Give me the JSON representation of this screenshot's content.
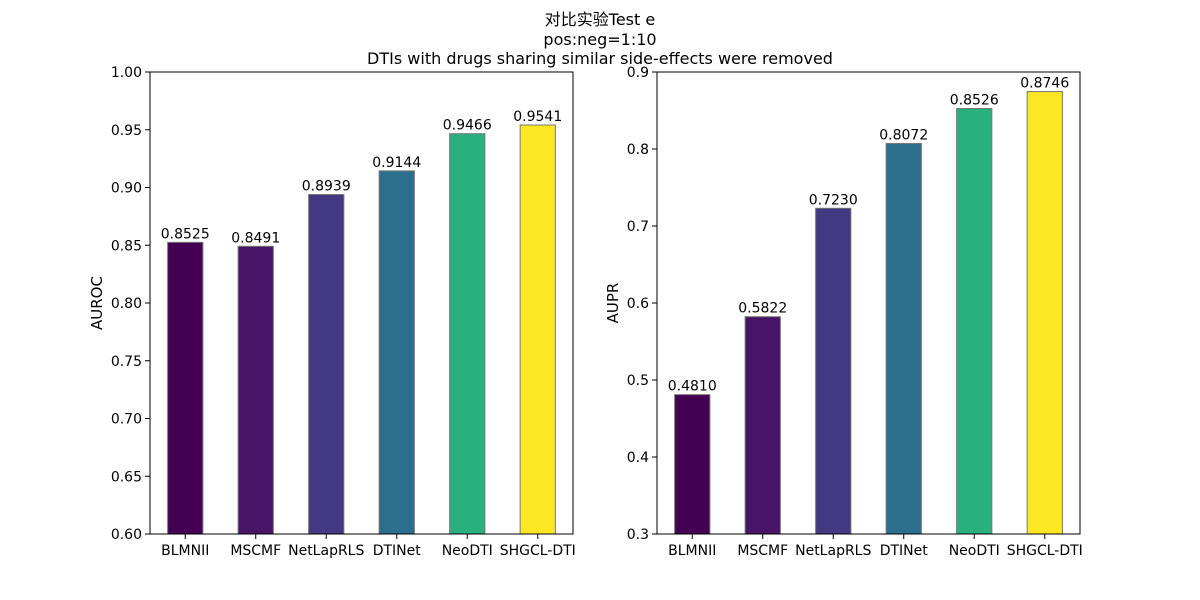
{
  "title_lines": [
    "对比实验Test e",
    "pos:neg=1:10",
    "DTIs with drugs sharing similar side-effects were removed"
  ],
  "chart_data": [
    {
      "type": "bar",
      "categories": [
        "BLMNII",
        "MSCMF",
        "NetLapRLS",
        "DTINet",
        "NeoDTI",
        "SHGCL-DTI"
      ],
      "values": [
        0.8525,
        0.8491,
        0.8939,
        0.9144,
        0.9466,
        0.9541
      ],
      "value_labels": [
        "0.8525",
        "0.8491",
        "0.8939",
        "0.9144",
        "0.9466",
        "0.9541"
      ],
      "colors": [
        "#440154",
        "#481467",
        "#433882",
        "#2c6e8e",
        "#2ab07f",
        "#fde725"
      ],
      "ylabel": "AUROC",
      "ylim": [
        0.6,
        1.0
      ],
      "yticks": [
        "0.60",
        "0.65",
        "0.70",
        "0.75",
        "0.80",
        "0.85",
        "0.90",
        "0.95",
        "1.00"
      ],
      "ytick_values": [
        0.6,
        0.65,
        0.7,
        0.75,
        0.8,
        0.85,
        0.9,
        0.95,
        1.0
      ]
    },
    {
      "type": "bar",
      "categories": [
        "BLMNII",
        "MSCMF",
        "NetLapRLS",
        "DTINet",
        "NeoDTI",
        "SHGCL-DTI"
      ],
      "values": [
        0.481,
        0.5822,
        0.723,
        0.8072,
        0.8526,
        0.8746
      ],
      "value_labels": [
        "0.4810",
        "0.5822",
        "0.7230",
        "0.8072",
        "0.8526",
        "0.8746"
      ],
      "colors": [
        "#440154",
        "#481467",
        "#433882",
        "#2c6e8e",
        "#2ab07f",
        "#fde725"
      ],
      "ylabel": "AUPR",
      "ylim": [
        0.3,
        0.9
      ],
      "yticks": [
        "0.3",
        "0.4",
        "0.5",
        "0.6",
        "0.7",
        "0.8",
        "0.9"
      ],
      "ytick_values": [
        0.3,
        0.4,
        0.5,
        0.6,
        0.7,
        0.8,
        0.9
      ]
    }
  ]
}
